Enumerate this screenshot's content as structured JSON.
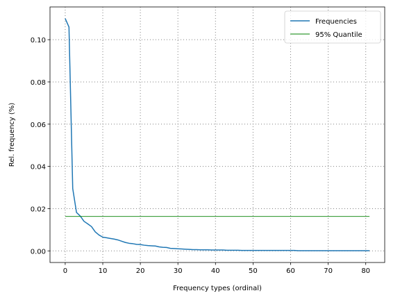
{
  "chart_data": {
    "type": "line",
    "xlabel": "Frequency types (ordinal)",
    "ylabel": "Rel. frequency (%)",
    "xlim": [
      -4.05,
      85.05
    ],
    "ylim": [
      -0.0055,
      0.1155
    ],
    "x_ticks": [
      0,
      10,
      20,
      30,
      40,
      50,
      60,
      70,
      80
    ],
    "x_tick_labels": [
      "0",
      "10",
      "20",
      "30",
      "40",
      "50",
      "60",
      "70",
      "80"
    ],
    "y_ticks": [
      0.0,
      0.02,
      0.04,
      0.06,
      0.08,
      0.1
    ],
    "y_tick_labels": [
      "0.00",
      "0.02",
      "0.04",
      "0.06",
      "0.08",
      "0.10"
    ],
    "grid": true,
    "legend_position": "top-right",
    "colors": {
      "frequencies": "#1f77b4",
      "quantile": "#008000",
      "grid": "#808080"
    },
    "series": [
      {
        "name": "Frequencies",
        "x": [
          0,
          1,
          2,
          3,
          4,
          5,
          6,
          7,
          8,
          9,
          10,
          11,
          12,
          13,
          14,
          15,
          16,
          17,
          18,
          19,
          20,
          21,
          22,
          23,
          24,
          25,
          26,
          27,
          28,
          29,
          30,
          31,
          32,
          33,
          34,
          35,
          36,
          37,
          38,
          39,
          40,
          41,
          42,
          43,
          44,
          45,
          46,
          47,
          48,
          49,
          50,
          51,
          52,
          53,
          54,
          55,
          56,
          57,
          58,
          59,
          60,
          61,
          62,
          63,
          64,
          65,
          66,
          67,
          68,
          69,
          70,
          71,
          72,
          73,
          74,
          75,
          76,
          77,
          78,
          79,
          80,
          81
        ],
        "values": [
          0.11,
          0.106,
          0.0295,
          0.0182,
          0.0165,
          0.014,
          0.0128,
          0.0115,
          0.009,
          0.0075,
          0.0065,
          0.0062,
          0.0059,
          0.0056,
          0.0052,
          0.0046,
          0.004,
          0.0036,
          0.0034,
          0.0031,
          0.003,
          0.0027,
          0.0025,
          0.0024,
          0.0023,
          0.0019,
          0.0017,
          0.0016,
          0.0012,
          0.0011,
          0.001,
          0.0009,
          0.0008,
          0.0007,
          0.0006,
          0.0006,
          0.0005,
          0.0005,
          0.0005,
          0.0004,
          0.0004,
          0.0004,
          0.0004,
          0.0003,
          0.0003,
          0.0003,
          0.0003,
          0.0002,
          0.0002,
          0.0002,
          0.0002,
          0.0002,
          0.0002,
          0.0002,
          0.0002,
          0.0002,
          0.0002,
          0.0002,
          0.0002,
          0.0002,
          0.0002,
          0.0002,
          0.0001,
          0.0001,
          0.0001,
          0.0001,
          0.0001,
          0.0001,
          0.0001,
          0.0001,
          0.0001,
          0.0001,
          0.0001,
          0.0001,
          0.0001,
          0.0001,
          0.0001,
          0.0001,
          0.0001,
          0.0001,
          0.0001,
          0.0001
        ]
      },
      {
        "name": "95% Quantile",
        "x": [
          0,
          81
        ],
        "values": [
          0.0163,
          0.0163
        ]
      }
    ]
  }
}
